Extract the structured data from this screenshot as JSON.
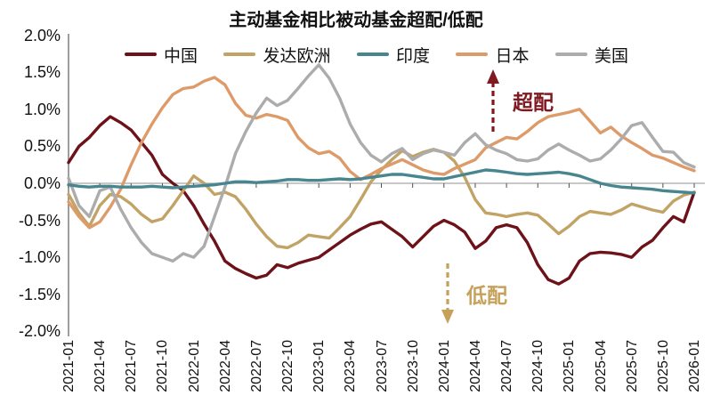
{
  "title": "主动基金相比被动基金超配/低配",
  "annotations": {
    "overweight": {
      "label": "超配",
      "color": "#7e1a20"
    },
    "underweight": {
      "label": "低配",
      "color": "#c5a15c"
    }
  },
  "axis": {
    "y_tick_labels": [
      "2.0%",
      "1.5%",
      "1.0%",
      "0.5%",
      "0.0%",
      "-0.5%",
      "-1.0%",
      "-1.5%",
      "-2.0%"
    ],
    "x_tick_labels": [
      "2021-01",
      "2021-04",
      "2021-07",
      "2021-10",
      "2022-01",
      "2022-04",
      "2022-07",
      "2022-10",
      "2023-01",
      "2023-04",
      "2023-07",
      "2023-10",
      "2024-01",
      "2024-04",
      "2024-07",
      "2024-10",
      "2025-01",
      "2025-04",
      "2025-07",
      "2025-10",
      "2026-01"
    ],
    "axis_color": "#7f7f7f",
    "zero_line_color": "#b5b5b5",
    "tick_color": "#4d4d4d"
  },
  "chart_data": {
    "type": "line",
    "title": "主动基金相比被动基金超配/低配",
    "xlabel": "",
    "ylabel": "",
    "ylim": [
      -2.0,
      2.0
    ],
    "y_ticks": [
      2.0,
      1.5,
      1.0,
      0.5,
      0.0,
      -0.5,
      -1.0,
      -1.5,
      -2.0
    ],
    "x_start": "2021-01",
    "x_end": "2026-01",
    "x_frequency": "monthly",
    "x_tick_labels": [
      "2021-01",
      "2021-04",
      "2021-07",
      "2021-10",
      "2022-01",
      "2022-04",
      "2022-07",
      "2022-10",
      "2023-01",
      "2023-04",
      "2023-07",
      "2023-10",
      "2024-01",
      "2024-04",
      "2024-07",
      "2024-10",
      "2025-01",
      "2025-04",
      "2025-07",
      "2025-10",
      "2026-01"
    ],
    "unit": "percent",
    "legend_position": "top",
    "grid": false,
    "series": [
      {
        "id": "china",
        "name": "中国",
        "color": "#6d1219",
        "values": [
          0.28,
          0.5,
          0.62,
          0.78,
          0.9,
          0.82,
          0.72,
          0.55,
          0.38,
          0.12,
          0.0,
          -0.1,
          -0.3,
          -0.55,
          -0.78,
          -1.05,
          -1.15,
          -1.22,
          -1.28,
          -1.24,
          -1.1,
          -1.14,
          -1.08,
          -1.04,
          -1.0,
          -0.9,
          -0.8,
          -0.7,
          -0.62,
          -0.55,
          -0.52,
          -0.62,
          -0.72,
          -0.86,
          -0.72,
          -0.58,
          -0.5,
          -0.56,
          -0.66,
          -0.88,
          -0.78,
          -0.6,
          -0.56,
          -0.6,
          -0.8,
          -1.1,
          -1.3,
          -1.36,
          -1.28,
          -1.05,
          -0.95,
          -0.93,
          -0.94,
          -0.96,
          -1.0,
          -0.86,
          -0.77,
          -0.6,
          -0.45,
          -0.52,
          -0.12
        ]
      },
      {
        "id": "developed-europe",
        "name": "发达欧洲",
        "color": "#c2a366",
        "values": [
          -0.15,
          -0.4,
          -0.58,
          -0.3,
          -0.15,
          -0.18,
          -0.28,
          -0.42,
          -0.52,
          -0.48,
          -0.3,
          -0.1,
          0.1,
          0.0,
          -0.15,
          -0.12,
          -0.18,
          -0.35,
          -0.55,
          -0.72,
          -0.85,
          -0.87,
          -0.8,
          -0.7,
          -0.72,
          -0.74,
          -0.6,
          -0.45,
          -0.22,
          0.02,
          0.18,
          0.32,
          0.44,
          0.36,
          0.42,
          0.46,
          0.42,
          0.3,
          0.08,
          -0.22,
          -0.4,
          -0.42,
          -0.45,
          -0.42,
          -0.4,
          -0.43,
          -0.55,
          -0.68,
          -0.58,
          -0.45,
          -0.38,
          -0.4,
          -0.42,
          -0.36,
          -0.28,
          -0.32,
          -0.36,
          -0.39,
          -0.24,
          -0.16,
          -0.12
        ]
      },
      {
        "id": "japan",
        "name": "日本",
        "color": "#de9b6a",
        "values": [
          -0.25,
          -0.45,
          -0.6,
          -0.52,
          -0.32,
          -0.08,
          0.25,
          0.55,
          0.8,
          1.02,
          1.2,
          1.28,
          1.3,
          1.38,
          1.43,
          1.33,
          1.08,
          0.92,
          0.88,
          0.93,
          0.9,
          0.85,
          0.62,
          0.48,
          0.4,
          0.43,
          0.34,
          0.16,
          0.05,
          0.12,
          0.2,
          0.26,
          0.32,
          0.25,
          0.18,
          0.14,
          0.12,
          0.2,
          0.26,
          0.32,
          0.48,
          0.55,
          0.62,
          0.6,
          0.7,
          0.82,
          0.9,
          0.93,
          0.96,
          1.0,
          0.84,
          0.68,
          0.76,
          0.64,
          0.55,
          0.47,
          0.38,
          0.34,
          0.28,
          0.22,
          0.17
        ]
      },
      {
        "id": "us",
        "name": "美国",
        "color": "#acacac",
        "values": [
          0.07,
          -0.3,
          -0.45,
          -0.1,
          -0.05,
          -0.35,
          -0.6,
          -0.8,
          -0.95,
          -1.0,
          -1.05,
          -0.95,
          -1.0,
          -0.85,
          -0.45,
          -0.05,
          0.4,
          0.7,
          0.95,
          1.15,
          1.05,
          1.12,
          1.28,
          1.45,
          1.6,
          1.42,
          1.15,
          0.8,
          0.55,
          0.38,
          0.29,
          0.4,
          0.47,
          0.32,
          0.4,
          0.45,
          0.42,
          0.38,
          0.55,
          0.67,
          0.52,
          0.45,
          0.4,
          0.32,
          0.3,
          0.33,
          0.45,
          0.53,
          0.45,
          0.38,
          0.3,
          0.33,
          0.45,
          0.6,
          0.78,
          0.82,
          0.62,
          0.43,
          0.42,
          0.28,
          0.22
        ]
      },
      {
        "id": "india",
        "name": "印度",
        "color": "#47868f",
        "values": [
          -0.02,
          -0.04,
          -0.05,
          -0.04,
          -0.04,
          -0.05,
          -0.05,
          -0.05,
          -0.04,
          -0.05,
          -0.06,
          -0.05,
          -0.04,
          -0.03,
          -0.02,
          0.0,
          0.02,
          0.02,
          0.01,
          0.02,
          0.03,
          0.05,
          0.05,
          0.04,
          0.04,
          0.05,
          0.06,
          0.05,
          0.06,
          0.08,
          0.1,
          0.12,
          0.12,
          0.1,
          0.08,
          0.06,
          0.06,
          0.09,
          0.12,
          0.15,
          0.18,
          0.17,
          0.15,
          0.13,
          0.12,
          0.13,
          0.14,
          0.15,
          0.13,
          0.1,
          0.05,
          0.0,
          -0.03,
          -0.05,
          -0.06,
          -0.07,
          -0.08,
          -0.1,
          -0.11,
          -0.12,
          -0.13
        ]
      }
    ],
    "legend_order": [
      "中国",
      "发达欧洲",
      "印度",
      "日本",
      "美国"
    ]
  }
}
